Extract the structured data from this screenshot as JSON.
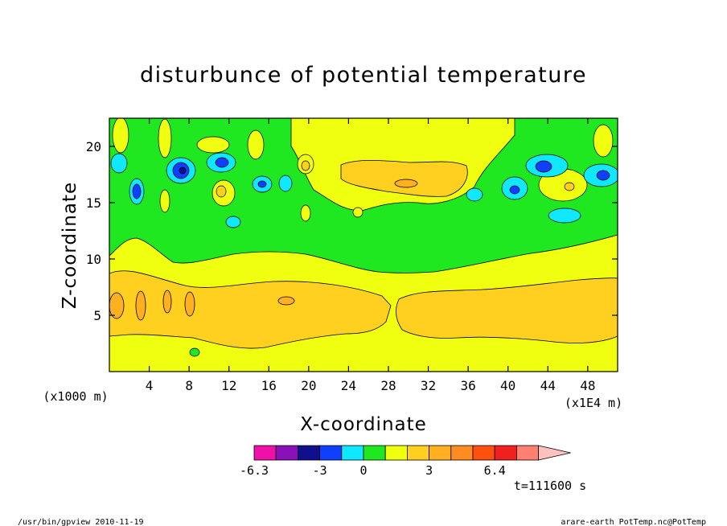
{
  "chart_data": {
    "type": "heatmap",
    "title": "disturbunce of potential temperature",
    "xlabel": "X-coordinate",
    "ylabel": "Z-coordinate",
    "x_unit_left": "(x1000 m)",
    "x_unit_right": "(x1E4 m)",
    "xlim": [
      0,
      51
    ],
    "ylim": [
      0,
      22.5
    ],
    "x_ticks": [
      "4",
      "8",
      "12",
      "16",
      "20",
      "24",
      "28",
      "32",
      "36",
      "40",
      "44",
      "48"
    ],
    "y_ticks": [
      "5",
      "10",
      "15",
      "20"
    ],
    "colorbar": {
      "levels": [
        -6.3,
        -5.4,
        -4.2,
        -3,
        -1.8,
        -0.6,
        0.6,
        1.8,
        3,
        4.2,
        5.4,
        6.4
      ],
      "colors": [
        "#ee10a8",
        "#8a10b8",
        "#10108c",
        "#1040ff",
        "#10e8ff",
        "#20e820",
        "#f0ff10",
        "#ffd020",
        "#ffb020",
        "#ff8c20",
        "#ff5010",
        "#f02020",
        "#ff8070",
        "#ffc0c0"
      ],
      "labels": [
        "-6.3",
        "-3",
        "0",
        "3",
        "6.4"
      ]
    },
    "grid": false
  },
  "time_label": "t=111600 s",
  "footer_left": "/usr/bin/gpview  2010-11-19",
  "footer_right": "arare-earth_PotTemp.nc@PotTemp"
}
